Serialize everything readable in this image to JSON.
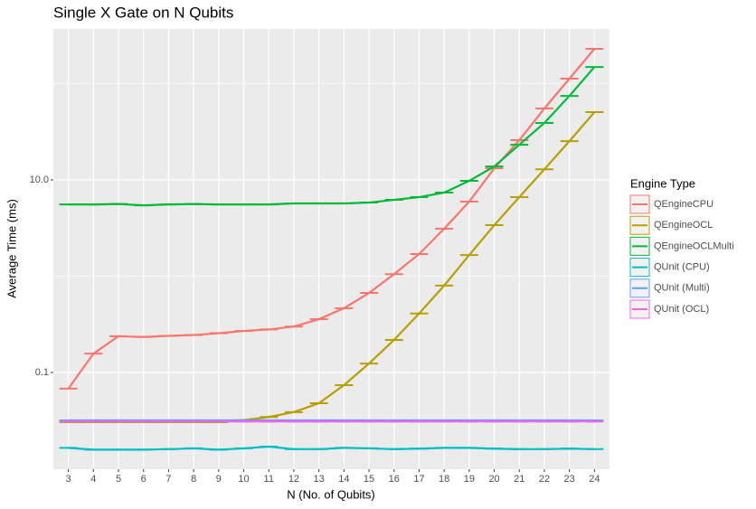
{
  "chart_data": {
    "type": "line",
    "title": "Single X Gate on N Qubits",
    "x_label": "N (No. of Qubits)",
    "y_label": "Average Time (ms)",
    "x": [
      3,
      4,
      5,
      6,
      7,
      8,
      9,
      10,
      11,
      12,
      13,
      14,
      15,
      16,
      17,
      18,
      19,
      20,
      21,
      22,
      23,
      24
    ],
    "xlim": [
      2.4,
      24.6
    ],
    "xticks": [
      3,
      4,
      5,
      6,
      7,
      8,
      9,
      10,
      11,
      12,
      13,
      14,
      15,
      16,
      17,
      18,
      19,
      20,
      21,
      22,
      23,
      24
    ],
    "log_y": true,
    "ylim": [
      0.0099,
      370
    ],
    "yticks": [
      0.1,
      {
        "value": 10,
        "label": "10.0"
      }
    ],
    "y_minor_grid": [
      1,
      100
    ],
    "grid": true,
    "legend_title": "Engine Type",
    "legend_position": "right",
    "series": [
      {
        "name": "QEngineCPU",
        "color": "#F8766D",
        "values": [
          0.068,
          0.157,
          0.238,
          0.234,
          0.24,
          0.245,
          0.256,
          0.27,
          0.28,
          0.3,
          0.358,
          0.465,
          0.67,
          1.05,
          1.7,
          3.11,
          5.95,
          13.2,
          25.9,
          55.2,
          112.7,
          230
        ]
      },
      {
        "name": "QEngineOCL",
        "color": "#B79F00",
        "values": [
          0.0305,
          0.0305,
          0.0305,
          0.0305,
          0.0305,
          0.0305,
          0.0305,
          0.032,
          0.0345,
          0.0388,
          0.048,
          0.074,
          0.124,
          0.218,
          0.41,
          0.8,
          1.66,
          3.39,
          6.63,
          12.9,
          25.3,
          50.6
        ]
      },
      {
        "name": "QEngineOCLMulti",
        "color": "#00BA38",
        "values": [
          5.57,
          5.57,
          5.62,
          5.45,
          5.57,
          5.62,
          5.57,
          5.57,
          5.57,
          5.7,
          5.7,
          5.7,
          5.82,
          6.21,
          6.63,
          7.39,
          9.78,
          13.8,
          23.2,
          39.1,
          74.6,
          149
        ]
      },
      {
        "name": "QUnit (CPU)",
        "color": "#00BFC4",
        "values": [
          0.0165,
          0.0158,
          0.0158,
          0.0158,
          0.016,
          0.0163,
          0.0158,
          0.0163,
          0.017,
          0.016,
          0.016,
          0.0165,
          0.0163,
          0.016,
          0.0162,
          0.0165,
          0.0165,
          0.0162,
          0.016,
          0.016,
          0.0162,
          0.016
        ]
      },
      {
        "name": "QUnit (Multi)",
        "color": "#619CFF",
        "values": [
          0.0318,
          0.0318,
          0.0318,
          0.0318,
          0.0318,
          0.0318,
          0.0318,
          0.0318,
          0.0318,
          0.0318,
          0.0318,
          0.0318,
          0.0318,
          0.0318,
          0.0318,
          0.0318,
          0.0318,
          0.0318,
          0.0318,
          0.0318,
          0.0318,
          0.0318
        ]
      },
      {
        "name": "QUnit (OCL)",
        "color": "#F564E3",
        "values": [
          0.031,
          0.031,
          0.031,
          0.031,
          0.031,
          0.031,
          0.031,
          0.031,
          0.031,
          0.031,
          0.031,
          0.031,
          0.031,
          0.031,
          0.031,
          0.031,
          0.031,
          0.031,
          0.031,
          0.031,
          0.031,
          0.031
        ]
      }
    ]
  }
}
